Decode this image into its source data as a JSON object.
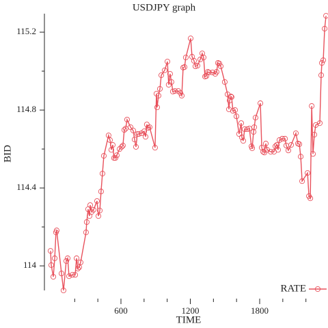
{
  "chart_data": {
    "type": "line",
    "title": "USDJPY graph",
    "xlabel": "TIME",
    "ylabel": "BID",
    "xlim": [
      -62,
      2391
    ],
    "ylim": [
      113.874,
      115.295
    ],
    "xticks": [
      600,
      1200,
      1800
    ],
    "xminorticks": [
      200,
      400,
      800,
      1000,
      1400,
      1600,
      2000,
      2200
    ],
    "yticks": [
      114,
      114.4,
      114.8,
      115.2
    ],
    "yminorticks": [
      114.2,
      114.6,
      115
    ],
    "legend": "bottom-right",
    "series": [
      {
        "name": "RATE",
        "color": "#e8505b",
        "x": [
          -9,
          -3,
          15,
          27,
          38,
          44,
          86,
          103,
          127,
          139,
          151,
          180,
          204,
          216,
          227,
          239,
          251,
          298,
          304,
          316,
          328,
          334,
          346,
          363,
          393,
          405,
          417,
          428,
          440,
          452,
          493,
          505,
          517,
          529,
          540,
          552,
          564,
          588,
          606,
          617,
          629,
          641,
          653,
          683,
          706,
          718,
          730,
          742,
          754,
          777,
          801,
          813,
          824,
          836,
          848,
          895,
          907,
          913,
          925,
          937,
          949,
          978,
          1002,
          1013,
          1025,
          1037,
          1049,
          1067,
          1096,
          1114,
          1126,
          1138,
          1150,
          1161,
          1203,
          1215,
          1232,
          1244,
          1262,
          1286,
          1303,
          1315,
          1327,
          1339,
          1351,
          1362,
          1392,
          1416,
          1427,
          1439,
          1451,
          1463,
          1498,
          1522,
          1534,
          1540,
          1551,
          1557,
          1569,
          1587,
          1599,
          1622,
          1640,
          1646,
          1658,
          1670,
          1693,
          1711,
          1729,
          1735,
          1747,
          1753,
          1764,
          1806,
          1818,
          1830,
          1841,
          1853,
          1865,
          1895,
          1924,
          1936,
          1948,
          1959,
          1971,
          1995,
          2019,
          2030,
          2048,
          2072,
          2113,
          2131,
          2143,
          2155,
          2167,
          2214,
          2226,
          2238,
          2250,
          2261,
          2273,
          2285,
          2320,
          2332,
          2338,
          2350,
          2362,
          2374
        ],
        "values": [
          114.077,
          114.004,
          113.944,
          114.039,
          114.172,
          114.182,
          113.961,
          113.874,
          114.025,
          114.039,
          113.947,
          113.954,
          113.954,
          114.039,
          113.986,
          113.993,
          114.018,
          114.172,
          114.225,
          114.291,
          114.256,
          114.312,
          114.277,
          114.288,
          114.333,
          114.256,
          114.284,
          114.382,
          114.474,
          114.565,
          114.67,
          114.646,
          114.596,
          114.621,
          114.554,
          114.554,
          114.568,
          114.6,
          114.611,
          114.618,
          114.698,
          114.705,
          114.751,
          114.712,
          114.695,
          114.649,
          114.611,
          114.677,
          114.677,
          114.681,
          114.691,
          114.663,
          114.726,
          114.709,
          114.712,
          114.607,
          114.884,
          114.814,
          114.874,
          114.909,
          114.979,
          115.004,
          115.049,
          114.93,
          114.986,
          114.944,
          114.895,
          114.898,
          114.898,
          114.888,
          114.874,
          115.018,
          115.021,
          115.07,
          115.168,
          115.074,
          115.053,
          115.025,
          115.028,
          115.06,
          115.091,
          115.07,
          114.972,
          114.975,
          114.996,
          114.993,
          114.993,
          114.986,
          114.996,
          115.042,
          115.039,
          115.025,
          114.944,
          114.881,
          114.804,
          114.849,
          114.87,
          114.867,
          114.796,
          114.8,
          114.768,
          114.677,
          114.733,
          114.66,
          114.642,
          114.702,
          114.702,
          114.705,
          114.614,
          114.604,
          114.688,
          114.712,
          114.761,
          114.835,
          114.607,
          114.586,
          114.582,
          114.628,
          114.596,
          114.586,
          114.586,
          114.614,
          114.621,
          114.596,
          114.646,
          114.653,
          114.653,
          114.618,
          114.593,
          114.621,
          114.681,
          114.628,
          114.625,
          114.561,
          114.435,
          114.477,
          114.358,
          114.347,
          114.821,
          114.575,
          114.674,
          114.723,
          114.733,
          114.979,
          115.042,
          115.056,
          115.218,
          115.284
        ]
      }
    ]
  }
}
